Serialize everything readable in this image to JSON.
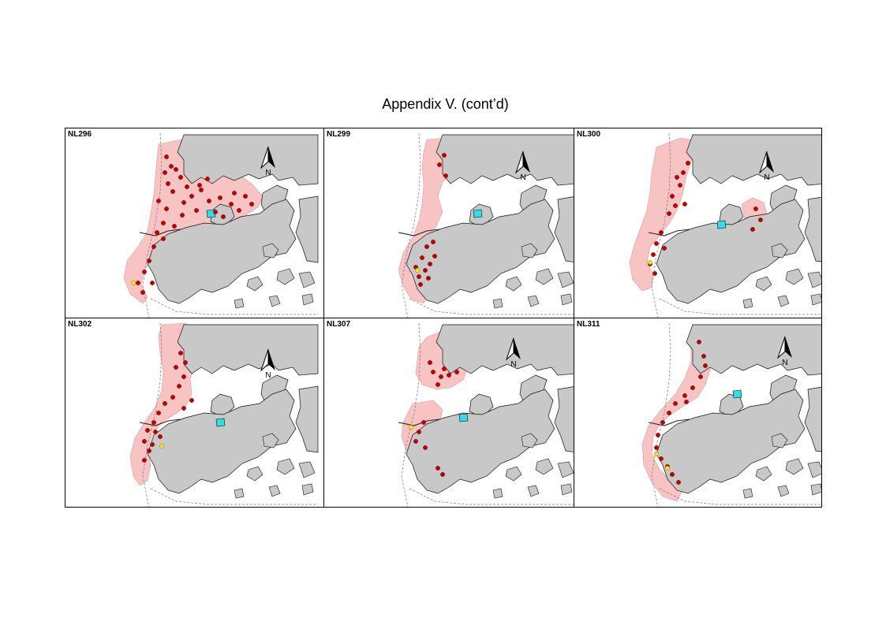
{
  "page": {
    "title": "Appendix V.  (cont’d)"
  },
  "colors": {
    "land": "#c8c8c8",
    "range": "#f7c3c3",
    "sighting": "#c00000",
    "sighting_alt": "#ffe020",
    "water_feature": "#33dde8"
  },
  "panels": [
    {
      "id": "NL296",
      "label": "NL296",
      "north_label": "N"
    },
    {
      "id": "NL299",
      "label": "NL299",
      "north_label": "N"
    },
    {
      "id": "NL300",
      "label": "NL300",
      "north_label": "N"
    },
    {
      "id": "NL302",
      "label": "NL302",
      "north_label": "N"
    },
    {
      "id": "NL307",
      "label": "NL307",
      "north_label": "N"
    },
    {
      "id": "NL311",
      "label": "NL311",
      "north_label": "N"
    }
  ]
}
